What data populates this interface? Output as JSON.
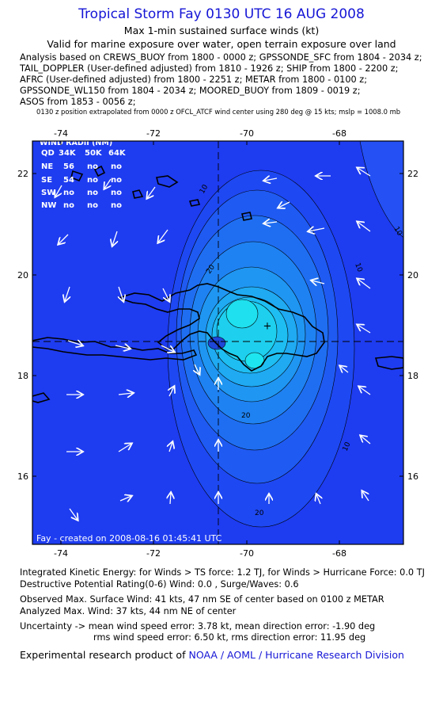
{
  "title": "Tropical Storm Fay 0130 UTC 16 AUG 2008",
  "subtitle": "Max 1-min sustained surface winds (kt)",
  "validity": "Valid for marine exposure over water, open terrain exposure over land",
  "analysis_lines": [
    "Analysis based on  CREWS_BUOY from 1800 - 0000 z;  GPSSONDE_SFC from 1804 - 2034 z;",
    "TAIL_DOPPLER (User-defined adjusted) from 1810 - 1926 z;  SHIP from 1800 - 2200 z;",
    "AFRC (User-defined adjusted) from 1800 - 2251 z;  METAR from 1800 - 0100 z;",
    "GPSSONDE_WL150 from 1804 - 2034 z;  MOORED_BUOY from 1809 - 0019 z;",
    "ASOS from 1853 - 0056 z;"
  ],
  "extrapolation_note": "0130 z position extrapolated from 0000 z OFCL_ATCF wind center using 280 deg @ 15 kts; mslp = 1008.0 mb",
  "map": {
    "lon_ticks": [
      "-74",
      "-72",
      "-70",
      "-68"
    ],
    "lat_ticks": [
      "22",
      "20",
      "18",
      "16"
    ],
    "lon_range": [
      -75.5,
      -66.5
    ],
    "lat_range": [
      14.6,
      23.0
    ],
    "contour_labels": [
      "10",
      "20",
      "10",
      "10",
      "20",
      "10",
      "20"
    ],
    "storm_center": {
      "lon": -69.8,
      "lat": 19.15
    },
    "colors": {
      "background": "#1e3cf0",
      "max_wind": "#1ee6f0",
      "land": "#000000",
      "text": "#ffffff"
    },
    "wind_radii": {
      "title": "WIND RADII (NM)",
      "headers": [
        "QD",
        "34K",
        "50K",
        "64K"
      ],
      "rows": [
        [
          "NE",
          "56",
          "no",
          "no"
        ],
        [
          "SE",
          "54",
          "no",
          "no"
        ],
        [
          "SW",
          "no",
          "no",
          "no"
        ],
        [
          "NW",
          "no",
          "no",
          "no"
        ]
      ]
    },
    "created_text": "Fay - created on 2008-08-16 01:45:41 UTC"
  },
  "footer": {
    "ike": "Integrated Kinetic Energy:  for Winds > TS force: 1.2 TJ,  for Winds > Hurricane Force: 0.0 TJ",
    "dpr": "Destructive Potential Rating(0-6)   Wind: 0.0 , Surge/Waves: 0.6",
    "obs_max": "Observed Max. Surface Wind: 41 kts, 47 nm SE of center based on 0100 z METAR",
    "ana_max": "Analyzed Max. Wind: 37 kts, 44 nm NE of center",
    "unc1": "Uncertainty -> mean wind speed error: 3.78 kt,   mean direction error:  -1.90 deg",
    "unc2": "rms wind speed error: 6.50 kt,   rms direction error: 11.95 deg",
    "credit_prefix": "Experimental research product of",
    "credit_org": "NOAA / AOML / Hurricane Research Division"
  }
}
